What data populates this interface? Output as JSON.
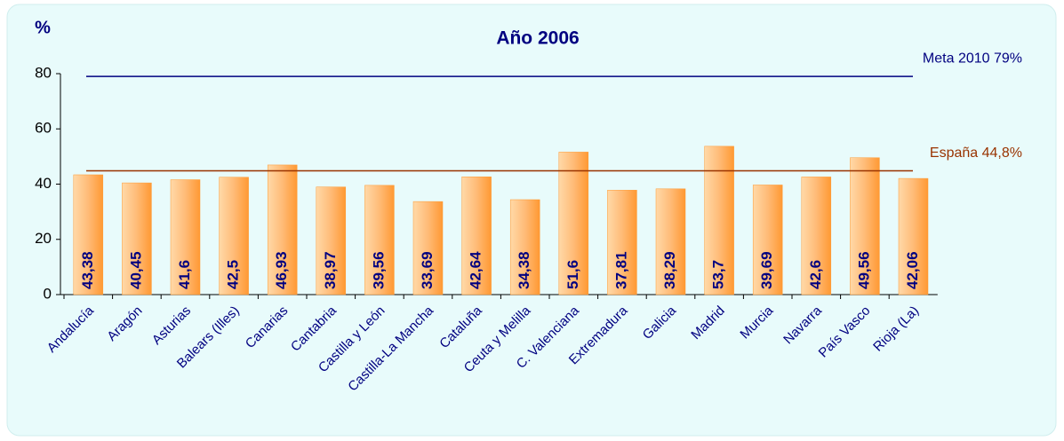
{
  "chart_data": {
    "type": "bar",
    "title": "Año 2006",
    "y_axis_label": "%",
    "categories": [
      "Andalucía",
      "Aragón",
      "Asturias",
      "Balears (Illes)",
      "Canarias",
      "Cantabria",
      "Castilla y León",
      "Castilla-La Mancha",
      "Cataluña",
      "Ceuta y Melilla",
      "C. Valenciana",
      "Extremadura",
      "Galicia",
      "Madrid",
      "Murcia",
      "Navarra",
      "País Vasco",
      "Rioja (La)"
    ],
    "values": [
      43.38,
      40.45,
      41.6,
      42.5,
      46.93,
      38.97,
      39.56,
      33.69,
      42.64,
      34.38,
      51.6,
      37.81,
      38.29,
      53.7,
      39.69,
      42.6,
      49.56,
      42.06
    ],
    "value_labels": [
      "43,38",
      "40,45",
      "41,6",
      "42,5",
      "46,93",
      "38,97",
      "39,56",
      "33,69",
      "42,64",
      "34,38",
      "51,6",
      "37,81",
      "38,29",
      "53,7",
      "39,69",
      "42,6",
      "49,56",
      "42,06"
    ],
    "color": "#ff9933",
    "ylim": [
      0,
      80
    ],
    "yticks": [
      0,
      20,
      40,
      60,
      80
    ],
    "reference_lines": [
      {
        "label": "Meta 2010 79%",
        "value": 79,
        "color": "#000080"
      },
      {
        "label": "España 44,8%",
        "value": 44.8,
        "color": "#993300"
      }
    ]
  }
}
